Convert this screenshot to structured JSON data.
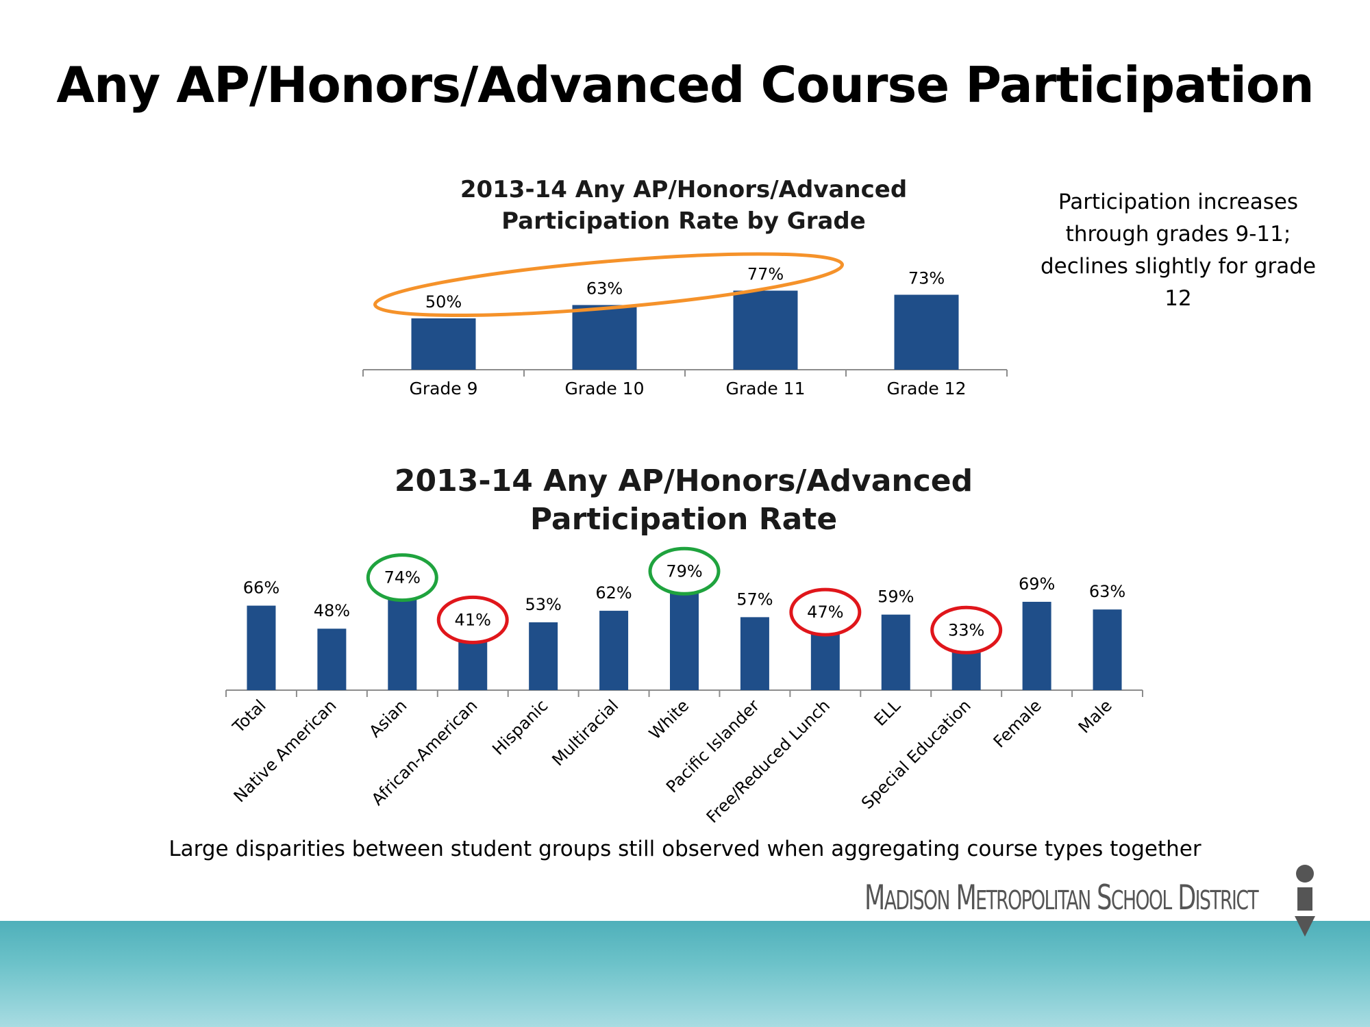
{
  "slide": {
    "title": "Any AP/Honors/Advanced Course Participation",
    "note_right": "Participation increases\nthrough grades 9-11;\ndeclines slightly for grade\n12",
    "note_bottom": "Large disparities between student groups still observed when aggregating course types together",
    "logo_text": "Madison Metropolitan School District"
  },
  "colors": {
    "bar": "#1f4e89",
    "axis": "#8c8c8c",
    "highlight_orange": "#f5922a",
    "highlight_green": "#1fa33e",
    "highlight_red": "#e0161b",
    "footer_teal": "#5bb6bf"
  },
  "chart_data": [
    {
      "type": "bar",
      "title": "2013-14 Any AP/Honors/Advanced Participation Rate by Grade",
      "title_lines": [
        "2013-14 Any AP/Honors/Advanced",
        "Participation Rate by Grade"
      ],
      "categories": [
        "Grade 9",
        "Grade 10",
        "Grade 11",
        "Grade 12"
      ],
      "values": [
        50,
        63,
        77,
        73
      ],
      "value_labels": [
        "50%",
        "63%",
        "77%",
        "73%"
      ],
      "unit": "%",
      "ylim": [
        0,
        140
      ],
      "grid": false,
      "highlight": {
        "shape": "ellipse",
        "color": "orange",
        "categories": [
          "Grade 9",
          "Grade 10",
          "Grade 11"
        ]
      }
    },
    {
      "type": "bar",
      "title": "2013-14 Any AP/Honors/Advanced Participation Rate",
      "title_lines": [
        "2013-14 Any AP/Honors/Advanced",
        "Participation Rate"
      ],
      "categories": [
        "Total",
        "Native American",
        "Asian",
        "African-American",
        "Hispanic",
        "Multiracial",
        "White",
        "Pacific Islander",
        "Free/Reduced Lunch",
        "ELL",
        "Special Education",
        "Female",
        "Male"
      ],
      "values": [
        66,
        48,
        74,
        41,
        53,
        62,
        79,
        57,
        47,
        59,
        33,
        69,
        63
      ],
      "value_labels": [
        "66%",
        "48%",
        "74%",
        "41%",
        "53%",
        "62%",
        "79%",
        "57%",
        "47%",
        "59%",
        "33%",
        "69%",
        "63%"
      ],
      "unit": "%",
      "ylim": [
        0,
        100
      ],
      "grid": false,
      "highlights": [
        {
          "category": "Asian",
          "color": "green"
        },
        {
          "category": "White",
          "color": "green"
        },
        {
          "category": "African-American",
          "color": "red"
        },
        {
          "category": "Free/Reduced Lunch",
          "color": "red"
        },
        {
          "category": "Special Education",
          "color": "red"
        }
      ]
    }
  ]
}
